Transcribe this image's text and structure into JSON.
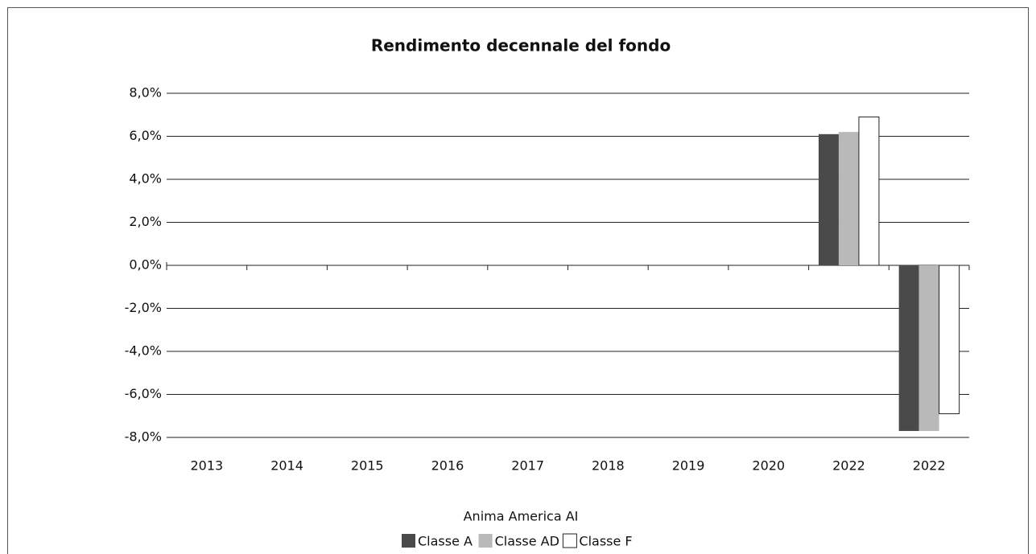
{
  "chart_data": {
    "type": "bar",
    "title": "Rendimento decennale del fondo",
    "legend_title": "Anima America AI",
    "categories": [
      "2013",
      "2014",
      "2015",
      "2016",
      "2017",
      "2018",
      "2019",
      "2020",
      "2022",
      "2022"
    ],
    "series": [
      {
        "name": "Classe A",
        "color": "#4a4a4a",
        "values": [
          null,
          null,
          null,
          null,
          null,
          null,
          null,
          null,
          6.1,
          -7.7
        ]
      },
      {
        "name": "Classe AD",
        "color": "#b9b9b9",
        "values": [
          null,
          null,
          null,
          null,
          null,
          null,
          null,
          null,
          6.2,
          -7.7
        ]
      },
      {
        "name": "Classe F",
        "color": "#ffffff",
        "values": [
          null,
          null,
          null,
          null,
          null,
          null,
          null,
          null,
          6.9,
          -6.9
        ]
      }
    ],
    "ylim": [
      -8,
      8
    ],
    "yticks": [
      {
        "value": -8,
        "label": "-8,0%"
      },
      {
        "value": -6,
        "label": "-6,0%"
      },
      {
        "value": -4,
        "label": "-4,0%"
      },
      {
        "value": -2,
        "label": "-2,0%"
      },
      {
        "value": 0,
        "label": "0,0%"
      },
      {
        "value": 2,
        "label": "2,0%"
      },
      {
        "value": 4,
        "label": "4,0%"
      },
      {
        "value": 6,
        "label": "6,0%"
      },
      {
        "value": 8,
        "label": "8,0%"
      }
    ],
    "grid": true,
    "legend": "bottom"
  }
}
